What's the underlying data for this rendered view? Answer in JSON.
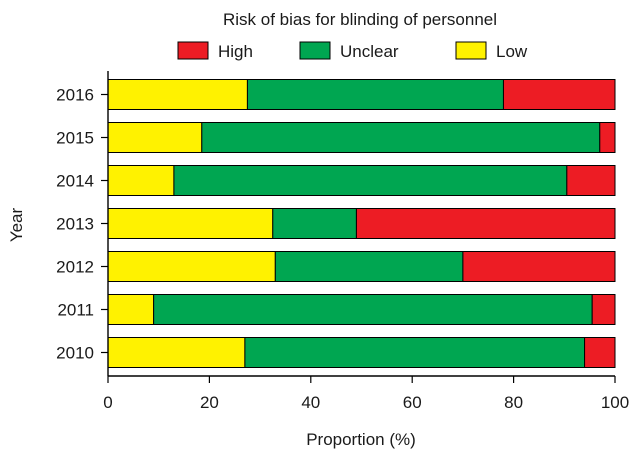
{
  "chart_data": {
    "type": "bar",
    "orientation": "horizontal",
    "stacked": true,
    "title": "Risk of bias for blinding of personnel",
    "xlabel": "Proportion (%)",
    "ylabel": "Year",
    "xlim": [
      0,
      100
    ],
    "xticks": [
      "0",
      "20",
      "40",
      "60",
      "80",
      "100"
    ],
    "categories": [
      "2016",
      "2015",
      "2014",
      "2013",
      "2012",
      "2011",
      "2010"
    ],
    "series": [
      {
        "name": "Low",
        "color": "#FFF200",
        "values": [
          27.5,
          18.5,
          13,
          32.5,
          33,
          9,
          27
        ]
      },
      {
        "name": "Unclear",
        "color": "#00A651",
        "values": [
          50.5,
          78.5,
          77.5,
          16.5,
          37,
          86.5,
          67
        ]
      },
      {
        "name": "High",
        "color": "#ED1C24",
        "values": [
          22,
          3,
          9.5,
          51,
          30,
          4.5,
          6
        ]
      }
    ],
    "legend_order": [
      "High",
      "Unclear",
      "Low"
    ],
    "legend_position": "top",
    "grid": false
  }
}
